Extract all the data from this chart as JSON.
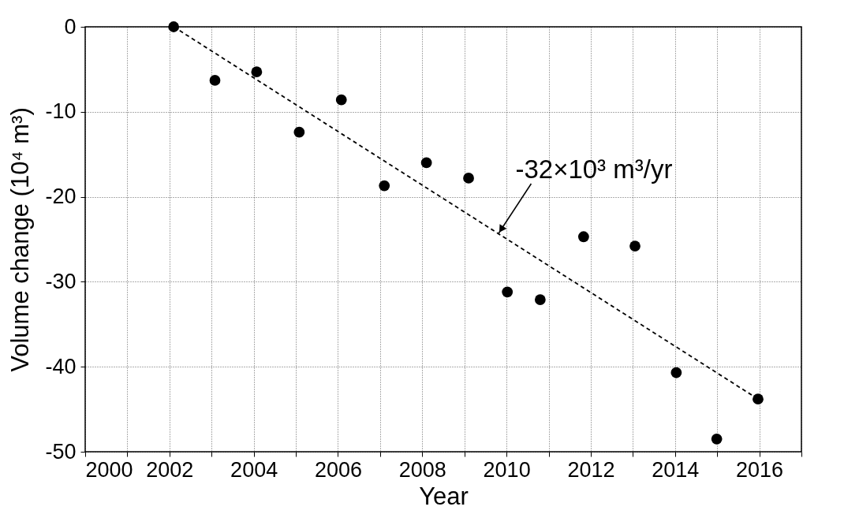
{
  "chart_data": {
    "type": "scatter",
    "xlabel": "Year",
    "ylabel": "Volume change (10⁴ m³)",
    "series": [
      {
        "color": "#000000",
        "marker": "circle",
        "x": [
          2002.1,
          2003.08,
          2004.07,
          2005.08,
          2006.08,
          2007.1,
          2008.1,
          2009.1,
          2010.02,
          2010.8,
          2011.83,
          2013.05,
          2014.03,
          2014.99,
          2015.97
        ],
        "values": [
          0,
          -6.3,
          -5.3,
          -12.4,
          -8.6,
          -18.7,
          -16.0,
          -17.8,
          -31.2,
          -32.1,
          -24.7,
          -25.8,
          -40.7,
          -48.5,
          -43.8
        ]
      },
      {
        "type": "line",
        "color": "#000000",
        "line_style": "dashed",
        "x": [
          2002.1,
          2015.97
        ],
        "values": [
          0,
          -43.8
        ]
      }
    ],
    "annotations": [
      {
        "text": "-32×10³ m³/yr",
        "x": 2009.8,
        "y": -24.4
      }
    ],
    "xlim": [
      2000,
      2017
    ],
    "xticks": [
      2000,
      {
        "value": 2001,
        "label": null
      },
      2002,
      {
        "value": 2003,
        "label": null
      },
      2004,
      {
        "value": 2005,
        "label": null
      },
      2006,
      {
        "value": 2007,
        "label": null
      },
      2008,
      {
        "value": 2009,
        "label": null
      },
      2010,
      {
        "value": 2011,
        "label": null
      },
      2012,
      {
        "value": 2013,
        "label": null
      },
      2014,
      {
        "value": 2015,
        "label": null
      },
      2016,
      {
        "value": 2017,
        "label": null
      }
    ],
    "ylim": [
      -50,
      0
    ],
    "yticks": [
      -50,
      -40,
      -30,
      -20,
      -10,
      0
    ],
    "grid": true
  }
}
